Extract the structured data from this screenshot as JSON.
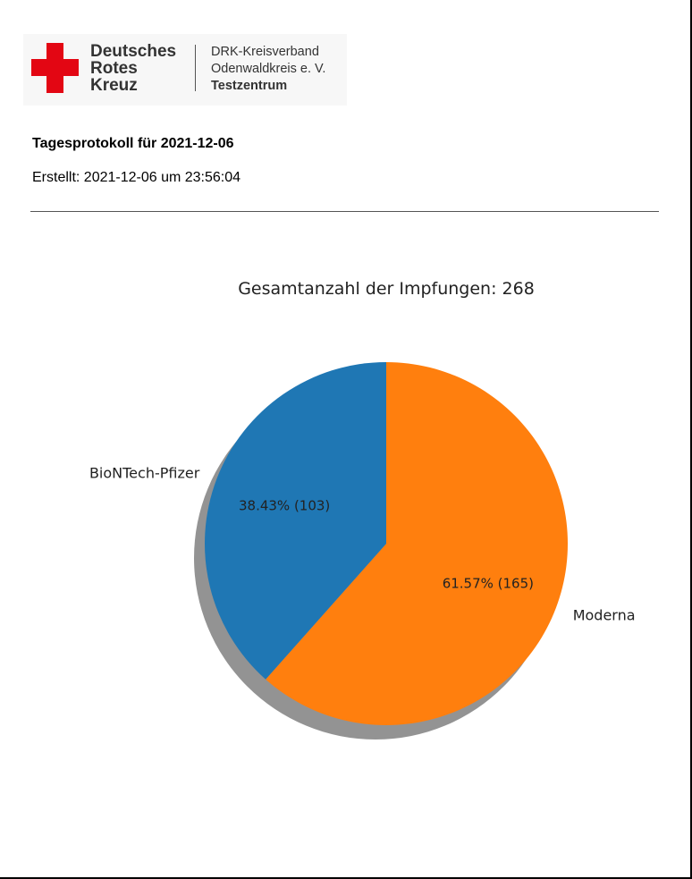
{
  "logo": {
    "org_line1": "Deutsches",
    "org_line2": "Rotes",
    "org_line3": "Kreuz",
    "sub_line1": "DRK-Kreisverband",
    "sub_line2": "Odenwaldkreis e. V.",
    "sub_line3": "Testzentrum",
    "accent_color": "#e30613"
  },
  "report": {
    "title": "Tagesprotokoll für 2021-12-06",
    "created": "Erstellt: 2021-12-06 um 23:56:04"
  },
  "chart_data": {
    "type": "pie",
    "title": "Gesamtanzahl der Impfungen: 268",
    "shadow": true,
    "start_angle_deg": 90,
    "direction": "clockwise",
    "slices": [
      {
        "label": "Moderna",
        "value": 165,
        "percent": 61.57,
        "autopct": "61.57%  (165)",
        "color": "#ff7f0e"
      },
      {
        "label": "BioNTech-Pfizer",
        "value": 103,
        "percent": 38.43,
        "autopct": "38.43%  (103)",
        "color": "#1f77b4"
      }
    ]
  }
}
